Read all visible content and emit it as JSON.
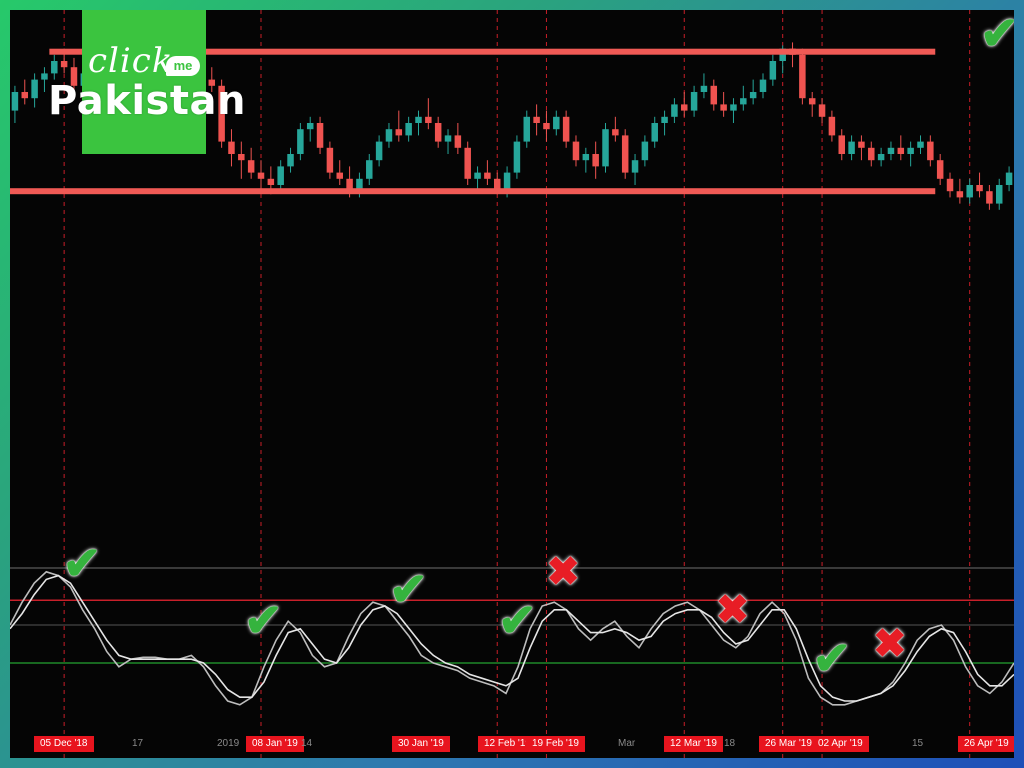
{
  "branding": {
    "logo_top": "click",
    "logo_badge": "me",
    "logo_bottom": "Pakistan",
    "logo_color": "#3bc43f"
  },
  "colors": {
    "bull": "#26a69a",
    "bear": "#ef5350",
    "level": "#f05a55",
    "stoch_k": "#bdbdbd",
    "stoch_d": "#e6e6e6",
    "overbought": "#c8202a",
    "oversold": "#1f8a2a",
    "mid": "#555555",
    "signal_line": "#c81e28"
  },
  "chart_data": {
    "type": "candlestick",
    "title": "",
    "price_panel": {
      "ylim": [
        0,
        100
      ],
      "levels": [
        {
          "name": "resistance",
          "value": 93,
          "from": 4,
          "to": 93
        },
        {
          "name": "support",
          "value": 48,
          "from": 0,
          "to": 93
        }
      ],
      "candles": [
        [
          74,
          82,
          70,
          80
        ],
        [
          80,
          84,
          76,
          78
        ],
        [
          78,
          86,
          75,
          84
        ],
        [
          84,
          88,
          80,
          86
        ],
        [
          86,
          92,
          84,
          90
        ],
        [
          90,
          94,
          86,
          88
        ],
        [
          88,
          91,
          80,
          82
        ],
        [
          82,
          88,
          78,
          86
        ],
        [
          86,
          90,
          82,
          84
        ],
        [
          84,
          88,
          78,
          80
        ],
        [
          80,
          86,
          76,
          82
        ],
        [
          82,
          90,
          80,
          84
        ],
        [
          84,
          88,
          78,
          80
        ],
        [
          80,
          84,
          72,
          74
        ],
        [
          74,
          80,
          70,
          78
        ],
        [
          78,
          84,
          74,
          82
        ],
        [
          82,
          88,
          80,
          86
        ],
        [
          86,
          90,
          82,
          84
        ],
        [
          84,
          88,
          78,
          82
        ],
        [
          82,
          86,
          80,
          84
        ],
        [
          84,
          88,
          80,
          82
        ],
        [
          82,
          84,
          62,
          64
        ],
        [
          64,
          68,
          56,
          60
        ],
        [
          60,
          64,
          52,
          58
        ],
        [
          58,
          62,
          52,
          54
        ],
        [
          54,
          58,
          48,
          52
        ],
        [
          52,
          56,
          47,
          50
        ],
        [
          50,
          58,
          48,
          56
        ],
        [
          56,
          62,
          54,
          60
        ],
        [
          60,
          70,
          58,
          68
        ],
        [
          68,
          72,
          64,
          70
        ],
        [
          70,
          72,
          60,
          62
        ],
        [
          62,
          64,
          52,
          54
        ],
        [
          54,
          58,
          50,
          52
        ],
        [
          52,
          56,
          46,
          48
        ],
        [
          48,
          54,
          46,
          52
        ],
        [
          52,
          60,
          50,
          58
        ],
        [
          58,
          66,
          56,
          64
        ],
        [
          64,
          70,
          62,
          68
        ],
        [
          68,
          74,
          64,
          66
        ],
        [
          66,
          72,
          64,
          70
        ],
        [
          70,
          74,
          66,
          72
        ],
        [
          72,
          78,
          68,
          70
        ],
        [
          70,
          72,
          62,
          64
        ],
        [
          64,
          68,
          60,
          66
        ],
        [
          66,
          70,
          60,
          62
        ],
        [
          62,
          64,
          50,
          52
        ],
        [
          52,
          56,
          48,
          54
        ],
        [
          54,
          58,
          50,
          52
        ],
        [
          52,
          54,
          47,
          48
        ],
        [
          48,
          56,
          46,
          54
        ],
        [
          54,
          66,
          52,
          64
        ],
        [
          64,
          74,
          62,
          72
        ],
        [
          72,
          76,
          66,
          70
        ],
        [
          70,
          74,
          64,
          68
        ],
        [
          68,
          74,
          66,
          72
        ],
        [
          72,
          74,
          62,
          64
        ],
        [
          64,
          66,
          56,
          58
        ],
        [
          58,
          62,
          54,
          60
        ],
        [
          60,
          64,
          52,
          56
        ],
        [
          56,
          70,
          54,
          68
        ],
        [
          68,
          72,
          64,
          66
        ],
        [
          66,
          68,
          52,
          54
        ],
        [
          54,
          60,
          50,
          58
        ],
        [
          58,
          66,
          56,
          64
        ],
        [
          64,
          72,
          62,
          70
        ],
        [
          70,
          74,
          66,
          72
        ],
        [
          72,
          78,
          70,
          76
        ],
        [
          76,
          80,
          72,
          74
        ],
        [
          74,
          82,
          72,
          80
        ],
        [
          80,
          86,
          78,
          82
        ],
        [
          82,
          84,
          74,
          76
        ],
        [
          76,
          80,
          72,
          74
        ],
        [
          74,
          78,
          70,
          76
        ],
        [
          76,
          82,
          74,
          78
        ],
        [
          78,
          84,
          76,
          80
        ],
        [
          80,
          86,
          78,
          84
        ],
        [
          84,
          92,
          82,
          90
        ],
        [
          90,
          95,
          86,
          94
        ],
        [
          94,
          96,
          88,
          92
        ],
        [
          92,
          94,
          76,
          78
        ],
        [
          78,
          80,
          72,
          76
        ],
        [
          76,
          78,
          70,
          72
        ],
        [
          72,
          74,
          64,
          66
        ],
        [
          66,
          68,
          58,
          60
        ],
        [
          60,
          66,
          58,
          64
        ],
        [
          64,
          66,
          58,
          62
        ],
        [
          62,
          64,
          56,
          58
        ],
        [
          58,
          62,
          56,
          60
        ],
        [
          60,
          64,
          58,
          62
        ],
        [
          62,
          66,
          58,
          60
        ],
        [
          60,
          64,
          56,
          62
        ],
        [
          62,
          66,
          60,
          64
        ],
        [
          64,
          66,
          56,
          58
        ],
        [
          58,
          60,
          50,
          52
        ],
        [
          52,
          54,
          46,
          48
        ],
        [
          48,
          52,
          44,
          46
        ],
        [
          46,
          52,
          44,
          50
        ],
        [
          50,
          54,
          46,
          48
        ],
        [
          48,
          50,
          42,
          44
        ],
        [
          44,
          52,
          42,
          50
        ],
        [
          50,
          56,
          48,
          54
        ]
      ]
    },
    "oscillator_panel": {
      "type": "line",
      "ylim": [
        0,
        100
      ],
      "levels": {
        "overbought": 80,
        "signal": 63,
        "mid": 50,
        "oversold": 30
      },
      "series": [
        {
          "values": [
            50,
            62,
            72,
            78,
            76,
            70,
            58,
            48,
            36,
            28,
            32,
            33,
            33,
            32,
            32,
            34,
            28,
            18,
            10,
            8,
            12,
            28,
            42,
            52,
            46,
            34,
            28,
            30,
            44,
            56,
            62,
            60,
            52,
            44,
            34,
            30,
            28,
            26,
            22,
            20,
            18,
            14,
            28,
            48,
            60,
            62,
            58,
            48,
            42,
            48,
            52,
            44,
            38,
            48,
            56,
            60,
            62,
            58,
            50,
            42,
            38,
            44,
            56,
            62,
            56,
            42,
            22,
            12,
            8,
            8,
            10,
            12,
            14,
            20,
            30,
            42,
            48,
            50,
            42,
            28,
            18,
            14,
            20,
            30
          ]
        },
        {
          "values": [
            48,
            56,
            66,
            74,
            76,
            72,
            62,
            52,
            42,
            34,
            32,
            32,
            32,
            32,
            32,
            32,
            30,
            24,
            16,
            12,
            12,
            20,
            34,
            46,
            48,
            40,
            32,
            30,
            38,
            50,
            58,
            60,
            56,
            48,
            40,
            34,
            30,
            28,
            24,
            22,
            20,
            18,
            22,
            38,
            52,
            58,
            58,
            52,
            46,
            46,
            48,
            46,
            42,
            44,
            52,
            56,
            58,
            58,
            54,
            46,
            40,
            42,
            50,
            58,
            58,
            48,
            32,
            18,
            12,
            10,
            10,
            12,
            14,
            18,
            26,
            36,
            44,
            48,
            46,
            36,
            24,
            18,
            18,
            24
          ]
        }
      ],
      "signals": [
        {
          "type": "ok",
          "x": 6
        },
        {
          "type": "ok",
          "x": 21
        },
        {
          "type": "ok",
          "x": 33
        },
        {
          "type": "ok",
          "x": 42
        },
        {
          "type": "bad",
          "x": 46
        },
        {
          "type": "bad",
          "x": 60
        },
        {
          "type": "ok",
          "x": 68
        },
        {
          "type": "bad",
          "x": 73
        },
        {
          "type": "ok",
          "x": 84
        }
      ]
    },
    "x_labels": [
      {
        "text": "05 Dec '18",
        "style": "red"
      },
      {
        "text": "17",
        "style": "plain"
      },
      {
        "text": "2019",
        "style": "plain"
      },
      {
        "text": "08 Jan '19",
        "style": "red"
      },
      {
        "text": "14",
        "style": "plain"
      },
      {
        "text": "30 Jan '19",
        "style": "red"
      },
      {
        "text": "12 Feb '19",
        "style": "red"
      },
      {
        "text": "19 Feb '19",
        "style": "red"
      },
      {
        "text": "Mar",
        "style": "plain"
      },
      {
        "text": "12 Mar '19",
        "style": "red"
      },
      {
        "text": "18",
        "style": "plain"
      },
      {
        "text": "26 Mar '19",
        "style": "red"
      },
      {
        "text": "02 Apr '19",
        "style": "red"
      },
      {
        "text": "15",
        "style": "plain"
      },
      {
        "text": "26 Apr '19",
        "style": "red"
      }
    ],
    "grid": false
  },
  "marks": {
    "ok": "✔",
    "bad": "✖"
  }
}
